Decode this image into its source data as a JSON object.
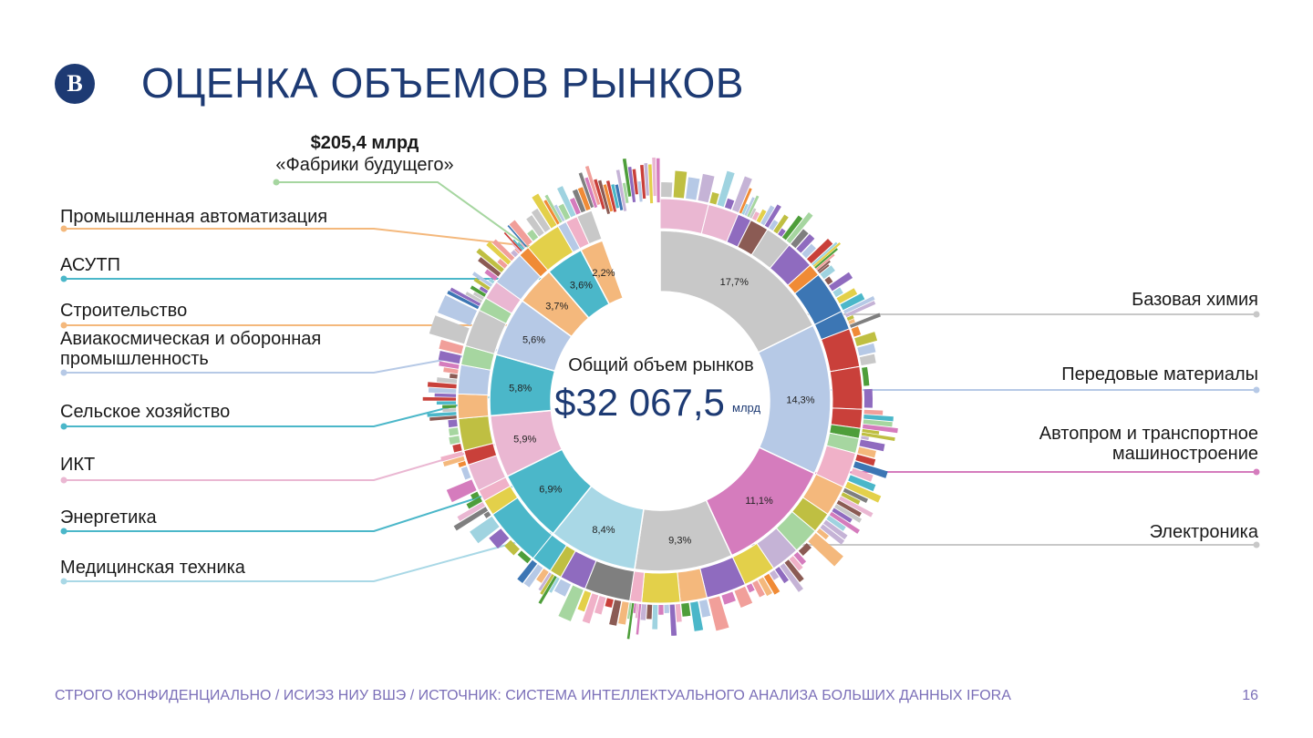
{
  "header": {
    "logo_text": "В",
    "title": "ОЦЕНКА ОБЪЕМОВ РЫНКОВ"
  },
  "callout": {
    "value": "$205,4 млрд",
    "name": "«Фабрики будущего»",
    "color": "#a6d6a0"
  },
  "center": {
    "label": "Общий объем рынков",
    "value": "$32 067,5",
    "unit": "млрд"
  },
  "footer": {
    "text": "СТРОГО КОНФИДЕНЦИАЛЬНО / ИСИЭЗ НИУ ВШЭ / ИСТОЧНИК: СИСТЕМА ИНТЕЛЛЕКТУАЛЬНОГО АНАЛИЗА БОЛЬШИХ ДАННЫХ IFORA",
    "page": "16"
  },
  "left_labels": [
    "Промышленная автоматизация",
    "АСУТП",
    "Строительство",
    "Авиакосмическая и оборонная\nпромышленность",
    "Сельское хозяйство",
    "ИКТ",
    "Энергетика",
    "Медицинская техника"
  ],
  "right_labels": [
    "Базовая химия",
    "Передовые материалы",
    "Автопром и транспортное\nмашиностроение",
    "Электроника"
  ],
  "chart_data": {
    "type": "pie",
    "title": "Общий объем рынков",
    "total": "$32 067,5 млрд",
    "series": [
      {
        "name": "Базовая химия",
        "value": 17.7,
        "label": "17,7%",
        "color": "#c8c8c8"
      },
      {
        "name": "Передовые материалы",
        "value": 14.3,
        "label": "14,3%",
        "color": "#b6c9e6"
      },
      {
        "name": "Автопром и транспортное машиностроение",
        "value": 11.1,
        "label": "11,1%",
        "color": "#d57cbd"
      },
      {
        "name": "Электроника",
        "value": 9.3,
        "label": "9,3%",
        "color": "#c8c8c8"
      },
      {
        "name": "Медицинская техника",
        "value": 8.4,
        "label": "8,4%",
        "color": "#a9d8e6"
      },
      {
        "name": "Энергетика",
        "value": 6.9,
        "label": "6,9%",
        "color": "#4bb7c9"
      },
      {
        "name": "ИКТ",
        "value": 5.9,
        "label": "5,9%",
        "color": "#eab7d2"
      },
      {
        "name": "Сельское хозяйство",
        "value": 5.8,
        "label": "5,8%",
        "color": "#4bb7c9"
      },
      {
        "name": "Авиакосмическая и оборонная промышленность",
        "value": 5.6,
        "label": "5,6%",
        "color": "#b6c9e6"
      },
      {
        "name": "Строительство",
        "value": 3.7,
        "label": "3,7%",
        "color": "#f4b87c"
      },
      {
        "name": "АСУТП",
        "value": 3.6,
        "label": "3,6%",
        "color": "#4bb7c9"
      },
      {
        "name": "Промышленная автоматизация",
        "value": 2.2,
        "label": "2,2%",
        "color": "#f4b87c"
      },
      {
        "name": "",
        "value": 5.5,
        "label": "",
        "color": "#ffffff"
      }
    ]
  },
  "outer_palette": [
    "#f19f9a",
    "#bfbf42",
    "#c9403a",
    "#c5b3d6",
    "#b6c9e6",
    "#f08b36",
    "#a6d6a0",
    "#8b5b54",
    "#8f6bbf",
    "#4bb7c9",
    "#f4b87c",
    "#eab7d2",
    "#4e9e3a",
    "#3c76b4",
    "#d57cbd",
    "#c8c8c8",
    "#7f7f7f",
    "#e3d04a",
    "#f0b1c8",
    "#9fd3e0"
  ]
}
